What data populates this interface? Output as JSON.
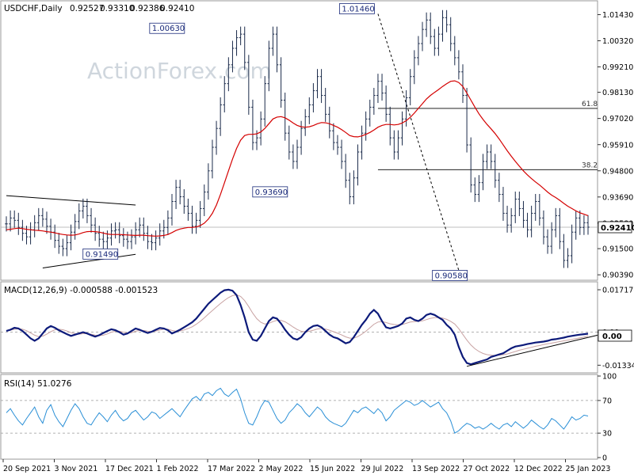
{
  "chart_data": {
    "type": "line",
    "watermark": "ActionForex.com",
    "price_panel": {
      "header": {
        "symbol": "USDCHF,Daily",
        "open": "0.92527",
        "high": "0.93310",
        "low": "0.92386",
        "close": "0.92410"
      },
      "ylim": [
        0.9036,
        1.0178
      ],
      "yticks": [
        "1.01430",
        "1.00320",
        "0.99210",
        "0.98130",
        "0.97020",
        "0.95910",
        "0.94800",
        "0.93690",
        "0.92580",
        "0.91500",
        "0.90390"
      ],
      "last_price": "0.92410",
      "annotations": [
        {
          "label": "1.00630",
          "x": 44.5,
          "y": 1.0063
        },
        {
          "label": "1.01460",
          "x": 91.5,
          "y": 1.0146
        },
        {
          "label": "0.93690",
          "x": 70.0,
          "y": 0.9369
        },
        {
          "label": "0.91490",
          "x": 28.0,
          "y": 0.9149
        },
        {
          "label": "0.90580",
          "x": 114.5,
          "y": 0.9058
        }
      ],
      "fib_levels": [
        {
          "label": "61.8",
          "value": 0.9745
        },
        {
          "label": "38.2",
          "value": 0.9485
        }
      ],
      "trendlines": [
        {
          "from": [
            0,
            0.9375
          ],
          "to": [
            32,
            0.9335
          ]
        },
        {
          "from": [
            9,
            0.9068
          ],
          "to": [
            32,
            0.9126
          ]
        }
      ],
      "projection_line": {
        "from": [
          92,
          1.0146
        ],
        "to": [
          112,
          0.9058
        ]
      },
      "price_series": [
        0.9255,
        0.928,
        0.927,
        0.924,
        0.9215,
        0.92,
        0.923,
        0.926,
        0.929,
        0.9275,
        0.9245,
        0.922,
        0.9185,
        0.916,
        0.915,
        0.9175,
        0.922,
        0.9265,
        0.931,
        0.933,
        0.929,
        0.925,
        0.9215,
        0.919,
        0.918,
        0.9195,
        0.9225,
        0.923,
        0.9205,
        0.919,
        0.918,
        0.92,
        0.923,
        0.925,
        0.9215,
        0.918,
        0.9175,
        0.9195,
        0.9225,
        0.924,
        0.928,
        0.935,
        0.941,
        0.937,
        0.933,
        0.93,
        0.9245,
        0.927,
        0.932,
        0.939,
        0.948,
        0.958,
        0.966,
        0.976,
        0.985,
        0.993,
        1.0,
        1.0045,
        1.006,
        0.994,
        0.975,
        0.96,
        0.962,
        0.97,
        0.985,
        1.0,
        1.006,
        0.993,
        0.978,
        0.964,
        0.956,
        0.952,
        0.958,
        0.966,
        0.971,
        0.976,
        0.982,
        0.988,
        0.98,
        0.972,
        0.965,
        0.96,
        0.958,
        0.952,
        0.944,
        0.937,
        0.945,
        0.956,
        0.964,
        0.97,
        0.975,
        0.98,
        0.986,
        0.981,
        0.972,
        0.962,
        0.956,
        0.962,
        0.97,
        0.979,
        0.988,
        0.996,
        1.002,
        1.008,
        1.012,
        1.005,
        1.0,
        1.006,
        1.013,
        1.01,
        1.002,
        0.996,
        0.99,
        0.98,
        0.959,
        0.942,
        0.938,
        0.943,
        0.952,
        0.956,
        0.952,
        0.944,
        0.938,
        0.93,
        0.925,
        0.929,
        0.936,
        0.932,
        0.927,
        0.923,
        0.93,
        0.935,
        0.928,
        0.92,
        0.916,
        0.923,
        0.929,
        0.918,
        0.91,
        0.912,
        0.922,
        0.928,
        0.924,
        0.926,
        0.9241
      ],
      "ma_series": [
        0.923,
        0.9232,
        0.9235,
        0.9237,
        0.9235,
        0.9232,
        0.923,
        0.9228,
        0.9227,
        0.9225,
        0.9222,
        0.922,
        0.9217,
        0.9213,
        0.921,
        0.9208,
        0.9207,
        0.9208,
        0.9212,
        0.9218,
        0.9222,
        0.9223,
        0.9222,
        0.922,
        0.9216,
        0.9212,
        0.921,
        0.921,
        0.921,
        0.9209,
        0.9208,
        0.9207,
        0.9206,
        0.9207,
        0.9207,
        0.9205,
        0.9204,
        0.9203,
        0.9204,
        0.9206,
        0.921,
        0.9218,
        0.9227,
        0.9233,
        0.9237,
        0.924,
        0.924,
        0.9242,
        0.9248,
        0.9258,
        0.9275,
        0.93,
        0.9335,
        0.938,
        0.943,
        0.948,
        0.953,
        0.9575,
        0.961,
        0.963,
        0.9635,
        0.9635,
        0.9637,
        0.9645,
        0.966,
        0.968,
        0.97,
        0.9708,
        0.971,
        0.9705,
        0.9695,
        0.9683,
        0.9673,
        0.9667,
        0.9665,
        0.9667,
        0.9672,
        0.968,
        0.9685,
        0.9684,
        0.968,
        0.9673,
        0.9665,
        0.9655,
        0.9643,
        0.963,
        0.9625,
        0.9624,
        0.9628,
        0.9635,
        0.9643,
        0.9653,
        0.9665,
        0.9673,
        0.9677,
        0.9677,
        0.9675,
        0.9677,
        0.9683,
        0.9693,
        0.9707,
        0.9725,
        0.9745,
        0.9765,
        0.9785,
        0.98,
        0.9813,
        0.9825,
        0.9838,
        0.985,
        0.986,
        0.9862,
        0.9855,
        0.9838,
        0.981,
        0.978,
        0.975,
        0.9722,
        0.9698,
        0.9677,
        0.9658,
        0.9638,
        0.9615,
        0.959,
        0.9565,
        0.9542,
        0.952,
        0.95,
        0.948,
        0.9463,
        0.9447,
        0.9433,
        0.942,
        0.9405,
        0.939,
        0.9377,
        0.9367,
        0.9355,
        0.9342,
        0.933,
        0.932,
        0.931,
        0.9302,
        0.9296,
        0.929
      ]
    },
    "macd_panel": {
      "label": "MACD(12,26,9) -0.000588 -0.001523",
      "ylim": [
        -0.0155,
        0.0191
      ],
      "yticks": [
        "0.017176",
        "0.00",
        "-0.01334"
      ],
      "last_value_label": "0.00",
      "macd_series": [
        0.0005,
        0.001,
        0.0018,
        0.0015,
        0.0005,
        -0.001,
        -0.0025,
        -0.0035,
        -0.0025,
        -0.0005,
        0.0015,
        0.0025,
        0.0018,
        0.0008,
        0.0,
        -0.0008,
        -0.0015,
        -0.001,
        -0.0005,
        0.0,
        -0.0005,
        -0.0012,
        -0.0018,
        -0.0012,
        -0.0003,
        0.0005,
        0.0012,
        0.0008,
        0.0,
        -0.001,
        -0.0005,
        0.0005,
        0.0015,
        0.001,
        0.0003,
        -0.0003,
        0.0002,
        0.001,
        0.0017,
        0.0015,
        0.0008,
        -0.0005,
        0.0002,
        0.001,
        0.002,
        0.003,
        0.004,
        0.0055,
        0.0075,
        0.0095,
        0.0115,
        0.013,
        0.0145,
        0.016,
        0.017,
        0.0172,
        0.0168,
        0.015,
        0.011,
        0.006,
        0.0,
        -0.003,
        -0.0035,
        -0.0015,
        0.0015,
        0.0045,
        0.006,
        0.0055,
        0.0035,
        0.001,
        -0.001,
        -0.0025,
        -0.003,
        -0.002,
        0.0,
        0.0015,
        0.0025,
        0.0028,
        0.002,
        0.0005,
        -0.001,
        -0.002,
        -0.0025,
        -0.0035,
        -0.0045,
        -0.004,
        -0.002,
        0.0005,
        0.003,
        0.005,
        0.0075,
        0.009,
        0.0075,
        0.0045,
        0.002,
        0.0015,
        0.002,
        0.0025,
        0.0035,
        0.0055,
        0.006,
        0.005,
        0.0045,
        0.0055,
        0.007,
        0.0075,
        0.007,
        0.006,
        0.005,
        0.003,
        0.0015,
        -0.001,
        -0.006,
        -0.01,
        -0.0125,
        -0.013,
        -0.0125,
        -0.012,
        -0.0115,
        -0.011,
        -0.01,
        -0.0095,
        -0.009,
        -0.0085,
        -0.0075,
        -0.0065,
        -0.0058,
        -0.0055,
        -0.0052,
        -0.0048,
        -0.0045,
        -0.0042,
        -0.004,
        -0.0038,
        -0.0035,
        -0.003,
        -0.0028,
        -0.0025,
        -0.0022,
        -0.0018,
        -0.0015,
        -0.0012,
        -0.001,
        -0.0008,
        -0.0006
      ],
      "signal_series": [
        0.0005,
        0.0008,
        0.0012,
        0.0014,
        0.0012,
        0.0006,
        -0.0003,
        -0.0012,
        -0.0018,
        -0.0016,
        -0.0008,
        0.0002,
        0.001,
        0.0012,
        0.001,
        0.0005,
        -0.0002,
        -0.0006,
        -0.0008,
        -0.0006,
        -0.0006,
        -0.0008,
        -0.0012,
        -0.0014,
        -0.0012,
        -0.0007,
        0.0,
        0.0004,
        0.0004,
        0.0,
        -0.0003,
        -0.0002,
        0.0004,
        0.0007,
        0.0007,
        0.0004,
        0.0003,
        0.0005,
        0.0009,
        0.0012,
        0.0012,
        0.0007,
        0.0004,
        0.0005,
        0.0009,
        0.0015,
        0.0022,
        0.0032,
        0.0044,
        0.0058,
        0.0073,
        0.0088,
        0.0102,
        0.0116,
        0.0129,
        0.014,
        0.0148,
        0.0151,
        0.0145,
        0.0128,
        0.0104,
        0.0077,
        0.0055,
        0.004,
        0.0033,
        0.0036,
        0.0043,
        0.0048,
        0.0048,
        0.0042,
        0.0032,
        0.0021,
        0.0011,
        0.0004,
        0.0002,
        0.0004,
        0.0008,
        0.0013,
        0.0015,
        0.0013,
        0.0008,
        0.0002,
        -0.0004,
        -0.0011,
        -0.0019,
        -0.0024,
        -0.0024,
        -0.0018,
        -0.0008,
        0.0004,
        0.0018,
        0.0032,
        0.0041,
        0.0043,
        0.0039,
        0.0034,
        0.0031,
        0.003,
        0.0031,
        0.0036,
        0.0041,
        0.0043,
        0.0044,
        0.0046,
        0.0051,
        0.0056,
        0.0059,
        0.0059,
        0.0057,
        0.0052,
        0.0044,
        0.0033,
        0.0014,
        -0.0009,
        -0.0032,
        -0.0052,
        -0.0067,
        -0.0078,
        -0.0086,
        -0.0091,
        -0.0093,
        -0.0094,
        -0.0093,
        -0.0091,
        -0.0088,
        -0.0083,
        -0.0078,
        -0.0073,
        -0.0069,
        -0.0065,
        -0.0061,
        -0.0057,
        -0.0054,
        -0.005,
        -0.0047,
        -0.0044,
        -0.0041,
        -0.0038,
        -0.0035,
        -0.0032,
        -0.0029,
        -0.0026,
        -0.0023,
        -0.002,
        -0.0015
      ]
    },
    "rsi_panel": {
      "label": "RSI(14) 51.0276",
      "ylim": [
        0,
        100
      ],
      "yticks": [
        "100",
        "70",
        "30",
        "0"
      ],
      "levels": [
        70,
        30
      ],
      "rsi_series": [
        55,
        60,
        52,
        45,
        40,
        48,
        55,
        62,
        50,
        42,
        58,
        65,
        52,
        44,
        38,
        48,
        58,
        66,
        60,
        50,
        42,
        40,
        48,
        55,
        50,
        44,
        52,
        58,
        50,
        45,
        48,
        55,
        58,
        52,
        46,
        50,
        56,
        54,
        48,
        52,
        56,
        60,
        55,
        50,
        58,
        65,
        72,
        75,
        70,
        78,
        80,
        76,
        82,
        85,
        78,
        75,
        80,
        84,
        72,
        55,
        42,
        40,
        50,
        62,
        70,
        68,
        58,
        48,
        42,
        46,
        55,
        60,
        66,
        62,
        55,
        50,
        56,
        62,
        58,
        50,
        45,
        42,
        40,
        38,
        42,
        50,
        58,
        55,
        60,
        62,
        58,
        54,
        60,
        55,
        45,
        50,
        58,
        62,
        66,
        70,
        68,
        64,
        66,
        70,
        66,
        62,
        65,
        68,
        60,
        55,
        45,
        30,
        33,
        38,
        42,
        40,
        36,
        38,
        35,
        38,
        42,
        38,
        35,
        40,
        42,
        38,
        44,
        40,
        36,
        40,
        46,
        42,
        38,
        35,
        40,
        48,
        45,
        40,
        35,
        42,
        50,
        46,
        48,
        52,
        51
      ]
    },
    "x_axis": {
      "tick_labels": [
        "20 Sep 2021",
        "3 Nov 2021",
        "17 Dec 2021",
        "1 Feb 2022",
        "17 Mar 2022",
        "2 May 2022",
        "15 Jun 2022",
        "29 Jul 2022",
        "13 Sep 2022",
        "27 Oct 2022",
        "12 Dec 2022",
        "25 Jan 2023"
      ]
    }
  }
}
